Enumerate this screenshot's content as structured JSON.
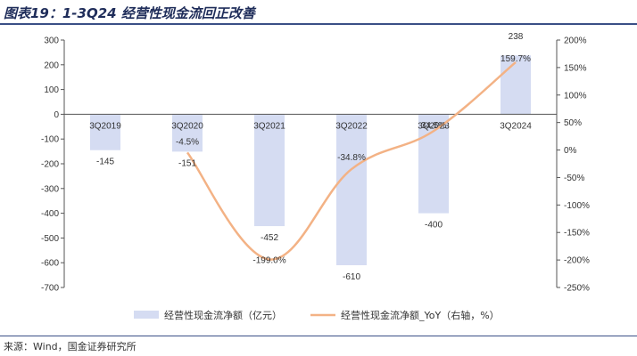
{
  "figure_title": "图表19：1-3Q24 经营性现金流回正改善",
  "source": "来源：Wind，国金证券研究所",
  "colors": {
    "bar": "#d5dcf2",
    "line": "#f3b285",
    "axis": "#555555",
    "rule": "#3a4f86"
  },
  "chart_data": {
    "type": "bar",
    "categories": [
      "3Q2019",
      "3Q2020",
      "3Q2021",
      "3Q2022",
      "3Q2023",
      "3Q2024"
    ],
    "series": [
      {
        "name": "经营性现金流净额（亿元）",
        "type": "bar",
        "axis": "left",
        "values": [
          -145,
          -151,
          -452,
          -610,
          -400,
          238
        ],
        "labels": [
          "-145",
          "-151",
          "-452",
          "-610",
          "-400",
          "238"
        ]
      },
      {
        "name": "经营性现金流净额_YoY（右轴，%）",
        "type": "line",
        "axis": "right",
        "values": [
          null,
          -4.5,
          -199.0,
          -34.8,
          34.5,
          159.7
        ],
        "labels": [
          "",
          "-4.5%",
          "-199.0%",
          "-34.8%",
          "34.5%",
          "159.7%"
        ]
      }
    ],
    "left_axis": {
      "min": -700,
      "max": 300,
      "ticks": [
        300,
        200,
        100,
        0,
        -100,
        -200,
        -300,
        -400,
        -500,
        -600,
        -700
      ]
    },
    "right_axis": {
      "min": -250,
      "max": 200,
      "ticks": [
        "200%",
        "150%",
        "100%",
        "50%",
        "0%",
        "-50%",
        "-100%",
        "-150%",
        "-200%",
        "-250%"
      ],
      "tick_values": [
        200,
        150,
        100,
        50,
        0,
        -50,
        -100,
        -150,
        -200,
        -250
      ]
    },
    "legend_position": "bottom",
    "grid": false
  }
}
